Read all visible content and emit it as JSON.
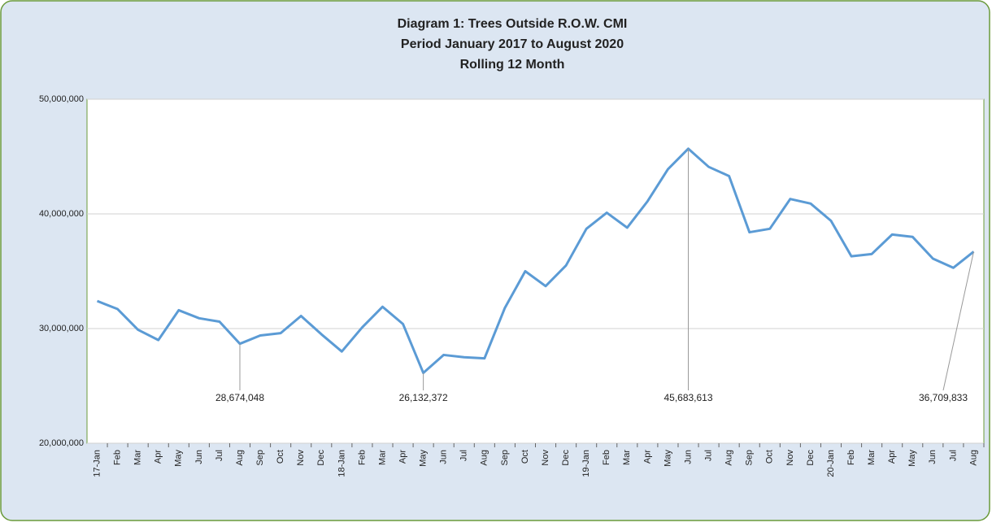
{
  "chart_data": {
    "type": "line",
    "title": [
      "Diagram 1:  Trees Outside R.O.W. CMI",
      "Period January 2017 to August 2020",
      "Rolling 12 Month"
    ],
    "categories": [
      "17-Jan",
      "Feb",
      "Mar",
      "Apr",
      "May",
      "Jun",
      "Jul",
      "Aug",
      "Sep",
      "Oct",
      "Nov",
      "Dec",
      "18-Jan",
      "Feb",
      "Mar",
      "Apr",
      "May",
      "Jun",
      "Jul",
      "Aug",
      "Sep",
      "Oct",
      "Nov",
      "Dec",
      "19-Jan",
      "Feb",
      "Mar",
      "Apr",
      "May",
      "Jun",
      "Jul",
      "Aug",
      "Sep",
      "Oct",
      "Nov",
      "Dec",
      "20-Jan",
      "Feb",
      "Mar",
      "Apr",
      "May",
      "Jun",
      "Jul",
      "Aug"
    ],
    "values": [
      32400000,
      31700000,
      29900000,
      29000000,
      31600000,
      30900000,
      30600000,
      28674048,
      29400000,
      29600000,
      31100000,
      29500000,
      28000000,
      30100000,
      31900000,
      30400000,
      26132372,
      27700000,
      27500000,
      27400000,
      31800000,
      35000000,
      33700000,
      35500000,
      38700000,
      40100000,
      38800000,
      41100000,
      43900000,
      45683613,
      44100000,
      43300000,
      38400000,
      38700000,
      41300000,
      40900000,
      39400000,
      36300000,
      36500000,
      38200000,
      38000000,
      36100000,
      35300000,
      36709833
    ],
    "value_labels": [
      null,
      null,
      null,
      null,
      null,
      null,
      null,
      "28,674,048",
      null,
      null,
      null,
      null,
      null,
      null,
      null,
      null,
      "26,132,372",
      null,
      null,
      null,
      null,
      null,
      null,
      null,
      null,
      null,
      null,
      null,
      null,
      "45,683,613",
      null,
      null,
      null,
      null,
      null,
      null,
      null,
      null,
      null,
      null,
      null,
      null,
      null,
      "36,709,833"
    ],
    "color": "#5b9bd5",
    "ylim": [
      20000000,
      50000000
    ],
    "yticks": [
      {
        "value": 20000000,
        "label": "20,000,000"
      },
      {
        "value": 30000000,
        "label": "30,000,000"
      },
      {
        "value": 40000000,
        "label": "40,000,000"
      },
      {
        "value": 50000000,
        "label": "50,000,000"
      }
    ],
    "grid": true
  }
}
